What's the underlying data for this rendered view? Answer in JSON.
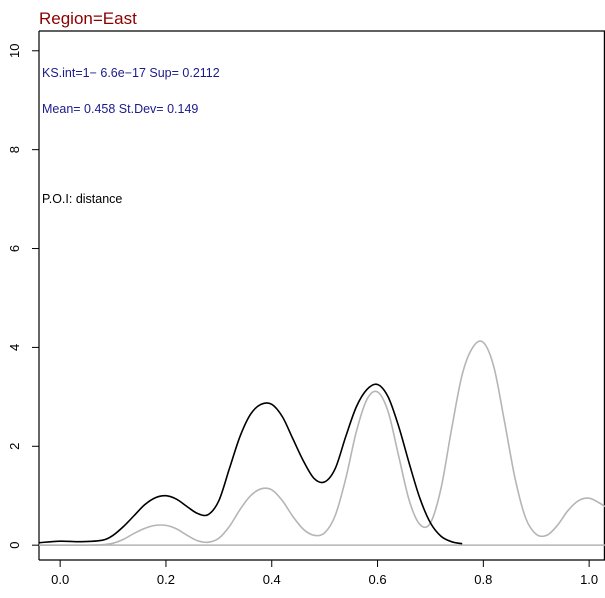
{
  "chart_data": {
    "type": "line",
    "title": "Region=East",
    "xlabel": "",
    "ylabel": "",
    "xlim": [
      -0.04,
      1.03
    ],
    "ylim": [
      -0.3,
      10.4
    ],
    "x_ticks": [
      0.0,
      0.2,
      0.4,
      0.6,
      0.8,
      1.0
    ],
    "x_tick_labels": [
      "0.0",
      "0.2",
      "0.4",
      "0.6",
      "0.8",
      "1.0"
    ],
    "y_ticks": [
      0,
      2,
      4,
      6,
      8,
      10
    ],
    "y_tick_labels": [
      "0",
      "2",
      "4",
      "6",
      "8",
      "10"
    ],
    "grid": false,
    "annotations": [
      {
        "text": "KS.int=1− 6.6e−17 Sup= 0.2112",
        "color": "#1a1a8c"
      },
      {
        "text": "Mean= 0.458 St.Dev= 0.149",
        "color": "#1a1a8c"
      },
      {
        "text": "P.O.I: distance",
        "color": "#000000"
      }
    ],
    "series": [
      {
        "color": "#000000",
        "x": [
          -0.04,
          0.0,
          0.04,
          0.08,
          0.1,
          0.12,
          0.14,
          0.16,
          0.18,
          0.2,
          0.22,
          0.24,
          0.26,
          0.28,
          0.3,
          0.32,
          0.34,
          0.36,
          0.38,
          0.4,
          0.42,
          0.44,
          0.46,
          0.48,
          0.5,
          0.52,
          0.54,
          0.56,
          0.58,
          0.6,
          0.62,
          0.64,
          0.66,
          0.68,
          0.7,
          0.72,
          0.74,
          0.76
        ],
        "y": [
          0.05,
          0.08,
          0.07,
          0.1,
          0.2,
          0.38,
          0.6,
          0.82,
          0.96,
          1.0,
          0.93,
          0.78,
          0.64,
          0.62,
          0.9,
          1.55,
          2.2,
          2.65,
          2.85,
          2.85,
          2.6,
          2.15,
          1.7,
          1.35,
          1.28,
          1.55,
          2.2,
          2.8,
          3.15,
          3.25,
          3.0,
          2.4,
          1.65,
          0.95,
          0.45,
          0.18,
          0.07,
          0.03
        ]
      },
      {
        "color": "#b5b5b5",
        "x": [
          -0.04,
          0.0,
          0.04,
          0.08,
          0.1,
          0.12,
          0.14,
          0.16,
          0.18,
          0.2,
          0.22,
          0.24,
          0.26,
          0.28,
          0.3,
          0.32,
          0.34,
          0.36,
          0.38,
          0.4,
          0.42,
          0.44,
          0.46,
          0.48,
          0.5,
          0.52,
          0.54,
          0.56,
          0.58,
          0.6,
          0.62,
          0.64,
          0.66,
          0.68,
          0.7,
          0.72,
          0.74,
          0.76,
          0.78,
          0.8,
          0.82,
          0.84,
          0.86,
          0.88,
          0.9,
          0.92,
          0.94,
          0.96,
          0.98,
          1.0,
          1.02,
          1.03
        ],
        "y": [
          0.0,
          0.0,
          0.0,
          0.01,
          0.04,
          0.12,
          0.24,
          0.34,
          0.4,
          0.4,
          0.33,
          0.2,
          0.09,
          0.06,
          0.14,
          0.38,
          0.72,
          1.0,
          1.14,
          1.12,
          0.9,
          0.58,
          0.32,
          0.2,
          0.25,
          0.6,
          1.35,
          2.3,
          2.95,
          3.1,
          2.7,
          1.8,
          0.9,
          0.42,
          0.45,
          1.15,
          2.35,
          3.45,
          4.0,
          4.1,
          3.6,
          2.5,
          1.35,
          0.55,
          0.22,
          0.2,
          0.4,
          0.7,
          0.9,
          0.95,
          0.85,
          0.78
        ]
      }
    ]
  }
}
